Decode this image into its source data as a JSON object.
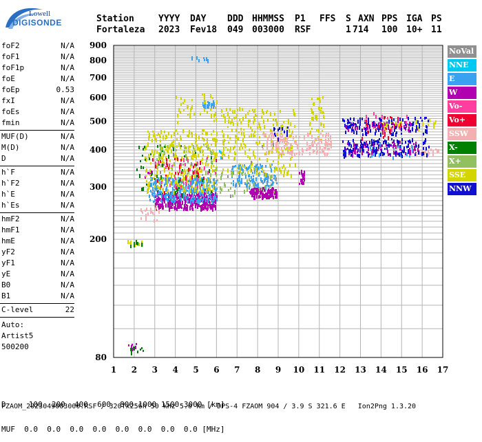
{
  "logo": {
    "line1": "Lowell",
    "line2": "DIGISONDE"
  },
  "header": {
    "labels": [
      "Station",
      "YYYY",
      "DAY",
      "DDD",
      "HHMMSS",
      "P1",
      "FFS",
      "S",
      "AXN",
      "PPS",
      "IGA",
      "PS"
    ],
    "values": [
      "Fortaleza",
      "2023",
      "Fev18",
      "049",
      "003000",
      "RSF",
      "",
      "1",
      "714",
      "100",
      "10+",
      "11"
    ]
  },
  "params_group1": [
    {
      "name": "foF2",
      "value": "N/A"
    },
    {
      "name": "foF1",
      "value": "N/A"
    },
    {
      "name": "foF1p",
      "value": "N/A"
    },
    {
      "name": "foE",
      "value": "N/A"
    },
    {
      "name": "foEp",
      "value": "0.53"
    },
    {
      "name": "fxI",
      "value": "N/A"
    },
    {
      "name": "foEs",
      "value": "N/A"
    },
    {
      "name": "fmin",
      "value": "N/A"
    }
  ],
  "params_group2": [
    {
      "name": "MUF(D)",
      "value": "N/A"
    },
    {
      "name": "M(D)",
      "value": "N/A"
    },
    {
      "name": "D",
      "value": "N/A"
    }
  ],
  "params_group3": [
    {
      "name": "h`F",
      "value": "N/A"
    },
    {
      "name": "h`F2",
      "value": "N/A"
    },
    {
      "name": "h`E",
      "value": "N/A"
    },
    {
      "name": "h`Es",
      "value": "N/A"
    }
  ],
  "params_group4": [
    {
      "name": "hmF2",
      "value": "N/A"
    },
    {
      "name": "hmF1",
      "value": "N/A"
    },
    {
      "name": "hmE",
      "value": "N/A"
    },
    {
      "name": "yF2",
      "value": "N/A"
    },
    {
      "name": "yF1",
      "value": "N/A"
    },
    {
      "name": "yE",
      "value": "N/A"
    },
    {
      "name": "B0",
      "value": "N/A"
    },
    {
      "name": "B1",
      "value": "N/A"
    }
  ],
  "clevel": {
    "name": "C-level",
    "value": "22"
  },
  "auto": {
    "line1": "Auto:",
    "line2": "Artist5",
    "line3": "500200"
  },
  "legend": [
    {
      "label": "NoVal",
      "color": "#909090"
    },
    {
      "label": "NNE",
      "color": "#00c8f0"
    },
    {
      "label": "E",
      "color": "#3aa0f0"
    },
    {
      "label": "W",
      "color": "#b000b0"
    },
    {
      "label": "Vo-",
      "color": "#ff3fa0"
    },
    {
      "label": "Vo+",
      "color": "#f00030"
    },
    {
      "label": "SSW",
      "color": "#f4b0b0"
    },
    {
      "label": "X-",
      "color": "#008000"
    },
    {
      "label": "X+",
      "color": "#90c060"
    },
    {
      "label": "SSE",
      "color": "#d4d400"
    },
    {
      "label": "NNW",
      "color": "#1010d0"
    }
  ],
  "footer": {
    "line1": "D     100  200  400  600  800 1000 1500 3000 [km]",
    "line2": "MUF  0.0  0.0  0.0  0.0  0.0  0.0  0.0  0.0 [MHz]",
    "line3": "FZAOM_2023049003000.RSF / 320fx256h 50 kHz 5.0 km / DPS-4 FZAOM 904 / 3.9 S 321.6 E   Ion2Png 1.3.20"
  },
  "chart_data": {
    "type": "scatter",
    "xlim": [
      1,
      17
    ],
    "ylim": [
      80,
      900
    ],
    "y_scale": "log",
    "x_ticks": [
      1,
      2,
      3,
      4,
      5,
      6,
      7,
      8,
      9,
      10,
      11,
      12,
      13,
      14,
      15,
      16,
      17
    ],
    "y_ticks": [
      80,
      200,
      300,
      400,
      500,
      600,
      700,
      800,
      900
    ],
    "grid": true,
    "series": [
      {
        "color": "#b000b0",
        "clusters": [
          {
            "x": [
              3.0,
              6.0
            ],
            "y": [
              255,
              290
            ],
            "n": 360
          },
          {
            "x": [
              7.6,
              8.9
            ],
            "y": [
              280,
              300
            ],
            "n": 120
          },
          {
            "x": [
              10.0,
              10.3
            ],
            "y": [
              310,
              345
            ],
            "n": 20
          },
          {
            "x": [
              12.2,
              15.8
            ],
            "y": [
              390,
              430
            ],
            "n": 90
          },
          {
            "x": [
              12.2,
              15.8
            ],
            "y": [
              470,
              500
            ],
            "n": 60
          },
          {
            "x": [
              2.5,
              2.9
            ],
            "y": [
              325,
              345
            ],
            "n": 8
          },
          {
            "x": [
              1.4,
              2.2
            ],
            "y": [
              86,
              90
            ],
            "n": 6
          }
        ]
      },
      {
        "color": "#3aa0f0",
        "clusters": [
          {
            "x": [
              2.7,
              6.0
            ],
            "y": [
              270,
              325
            ],
            "n": 300
          },
          {
            "x": [
              6.7,
              8.9
            ],
            "y": [
              300,
              360
            ],
            "n": 120
          },
          {
            "x": [
              5.3,
              5.9
            ],
            "y": [
              560,
              590
            ],
            "n": 22
          },
          {
            "x": [
              4.7,
              5.6
            ],
            "y": [
              800,
              830
            ],
            "n": 10
          },
          {
            "x": [
              13.2,
              15.6
            ],
            "y": [
              380,
              430
            ],
            "n": 25
          }
        ]
      },
      {
        "color": "#d4d400",
        "clusters": [
          {
            "x": [
              2.5,
              6.0
            ],
            "y": [
              290,
              470
            ],
            "n": 320
          },
          {
            "x": [
              6.2,
              9.8
            ],
            "y": [
              330,
              560
            ],
            "n": 240
          },
          {
            "x": [
              10.5,
              11.2
            ],
            "y": [
              430,
              620
            ],
            "n": 40
          },
          {
            "x": [
              14.0,
              16.7
            ],
            "y": [
              470,
              510
            ],
            "n": 30
          },
          {
            "x": [
              4.0,
              6.0
            ],
            "y": [
              500,
              620
            ],
            "n": 40
          },
          {
            "x": [
              1.6,
              2.4
            ],
            "y": [
              190,
              200
            ],
            "n": 10
          }
        ]
      },
      {
        "color": "#008000",
        "clusters": [
          {
            "x": [
              2.1,
              5.8
            ],
            "y": [
              285,
              420
            ],
            "n": 50
          },
          {
            "x": [
              1.6,
              2.4
            ],
            "y": [
              190,
              200
            ],
            "n": 10
          },
          {
            "x": [
              1.5,
              2.4
            ],
            "y": [
              84,
              90
            ],
            "n": 8
          }
        ]
      },
      {
        "color": "#90c060",
        "clusters": [
          {
            "x": [
              4.0,
              9.0
            ],
            "y": [
              280,
              340
            ],
            "n": 60
          },
          {
            "x": [
              3.0,
              6.0
            ],
            "y": [
              340,
              420
            ],
            "n": 40
          }
        ]
      },
      {
        "color": "#f4b0b0",
        "clusters": [
          {
            "x": [
              8.2,
              11.6
            ],
            "y": [
              390,
              460
            ],
            "n": 150
          },
          {
            "x": [
              2.2,
              3.2
            ],
            "y": [
              230,
              260
            ],
            "n": 20
          },
          {
            "x": [
              15.6,
              16.8
            ],
            "y": [
              390,
              410
            ],
            "n": 20
          }
        ]
      },
      {
        "color": "#1010d0",
        "clusters": [
          {
            "x": [
              12.1,
              16.3
            ],
            "y": [
              385,
              440
            ],
            "n": 140
          },
          {
            "x": [
              12.1,
              16.3
            ],
            "y": [
              455,
              520
            ],
            "n": 110
          },
          {
            "x": [
              8.6,
              9.6
            ],
            "y": [
              440,
              480
            ],
            "n": 12
          }
        ]
      },
      {
        "color": "#f00030",
        "clusters": [
          {
            "x": [
              2.8,
              6.0
            ],
            "y": [
              290,
              380
            ],
            "n": 40
          },
          {
            "x": [
              13.0,
              15.0
            ],
            "y": [
              440,
              520
            ],
            "n": 20
          }
        ]
      },
      {
        "color": "#ff3fa0",
        "clusters": [
          {
            "x": [
              3.0,
              6.0
            ],
            "y": [
              300,
              380
            ],
            "n": 30
          },
          {
            "x": [
              13.0,
              15.5
            ],
            "y": [
              460,
              540
            ],
            "n": 15
          }
        ]
      },
      {
        "color": "#00c8f0",
        "clusters": [
          {
            "x": [
              6.0,
              6.2
            ],
            "y": [
              380,
              400
            ],
            "n": 4
          }
        ]
      },
      {
        "color": "#909090",
        "clusters": [
          {
            "x": [
              2.5,
              9.0
            ],
            "y": [
              280,
              440
            ],
            "n": 15
          }
        ]
      }
    ]
  }
}
